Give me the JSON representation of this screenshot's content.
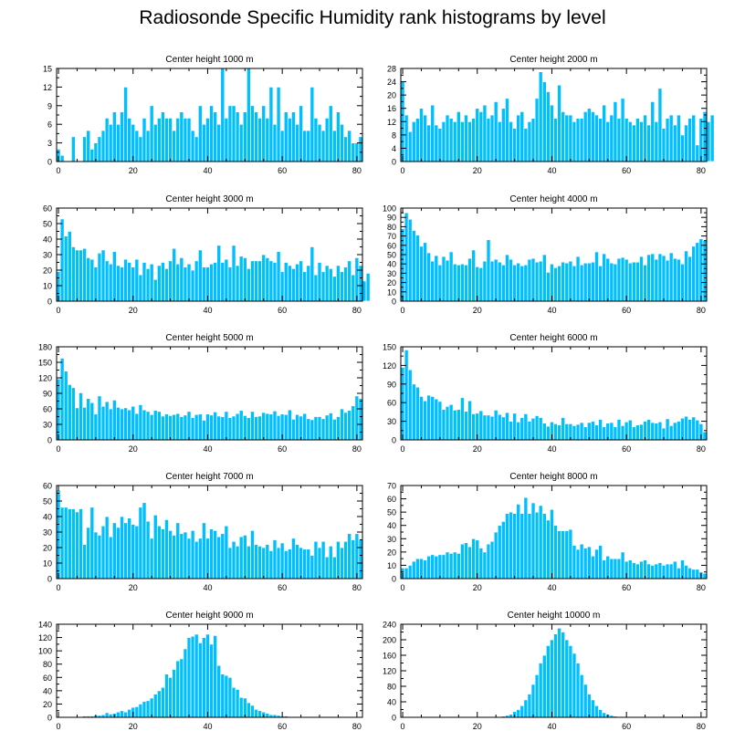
{
  "title": "Radiosonde Specific Humidity rank histograms by level",
  "colors": {
    "bar": "#00bfff",
    "bar_edge": "#ffffff",
    "axis": "#000000"
  },
  "chart_data": [
    {
      "type": "bar",
      "title": "Center height 1000 m",
      "ylim": [
        0,
        15
      ],
      "yticks": [
        0,
        3,
        6,
        9,
        12,
        15
      ],
      "xlim": [
        -0.5,
        81.5
      ],
      "xticks": [
        0,
        20,
        40,
        60,
        80
      ],
      "values": [
        2,
        1,
        0,
        0,
        4,
        0,
        0,
        4,
        5,
        2,
        3,
        4,
        5,
        7,
        6,
        8,
        6,
        8,
        12,
        7,
        6,
        5,
        4,
        7,
        5,
        9,
        6,
        7,
        8,
        7,
        7,
        5,
        7,
        8,
        7,
        7,
        5,
        4,
        9,
        6,
        7,
        9,
        8,
        6,
        15,
        7,
        9,
        9,
        8,
        6,
        8,
        15,
        9,
        8,
        7,
        9,
        7,
        12,
        6,
        12,
        5,
        8,
        7,
        8,
        6,
        9,
        5,
        5,
        12,
        7,
        6,
        5,
        7,
        9,
        5,
        8,
        6,
        4,
        5,
        3,
        3,
        4
      ]
    },
    {
      "type": "bar",
      "title": "Center height 2000 m",
      "ylim": [
        0,
        28
      ],
      "yticks": [
        0,
        4,
        8,
        12,
        16,
        20,
        24,
        28
      ],
      "xlim": [
        -0.5,
        81.5
      ],
      "xticks": [
        0,
        20,
        40,
        60,
        80
      ],
      "values": [
        24,
        14,
        9,
        12,
        13,
        16,
        14,
        11,
        17,
        11,
        10,
        12,
        14,
        13,
        12,
        15,
        12,
        14,
        12,
        13,
        16,
        15,
        17,
        13,
        14,
        18,
        12,
        16,
        19,
        12,
        10,
        14,
        15,
        10,
        12,
        13,
        19,
        27,
        24,
        21,
        17,
        13,
        23,
        15,
        14,
        14,
        12,
        13,
        13,
        15,
        16,
        15,
        14,
        13,
        17,
        12,
        14,
        18,
        13,
        19,
        13,
        12,
        11,
        13,
        12,
        14,
        11,
        18,
        12,
        22,
        10,
        13,
        14,
        11,
        14,
        8,
        11,
        13,
        14,
        5,
        13,
        15,
        12,
        14
      ]
    },
    {
      "type": "bar",
      "title": "Center height 3000 m",
      "ylim": [
        0,
        60
      ],
      "yticks": [
        0,
        10,
        20,
        30,
        40,
        50,
        60
      ],
      "xlim": [
        -0.5,
        81.5
      ],
      "xticks": [
        0,
        20,
        40,
        60,
        80
      ],
      "values": [
        19,
        53,
        42,
        45,
        35,
        33,
        33,
        34,
        28,
        27,
        22,
        31,
        33,
        26,
        24,
        32,
        23,
        22,
        27,
        25,
        22,
        27,
        17,
        25,
        21,
        24,
        14,
        23,
        25,
        21,
        26,
        34,
        24,
        28,
        22,
        24,
        20,
        26,
        33,
        22,
        22,
        24,
        25,
        36,
        25,
        27,
        22,
        36,
        23,
        29,
        28,
        21,
        26,
        26,
        26,
        30,
        28,
        26,
        25,
        32,
        19,
        25,
        23,
        21,
        24,
        26,
        19,
        23,
        35,
        17,
        25,
        19,
        23,
        21,
        16,
        23,
        19,
        22,
        26,
        17,
        28,
        23,
        13,
        18
      ]
    },
    {
      "type": "bar",
      "title": "Center height 4000 m",
      "ylim": [
        0,
        100
      ],
      "yticks": [
        0,
        10,
        20,
        30,
        40,
        50,
        60,
        70,
        80,
        90,
        100
      ],
      "xlim": [
        -0.5,
        81.5
      ],
      "xticks": [
        0,
        20,
        40,
        60,
        80
      ],
      "values": [
        78,
        95,
        88,
        76,
        71,
        59,
        63,
        52,
        43,
        49,
        39,
        48,
        44,
        53,
        40,
        39,
        40,
        39,
        46,
        55,
        37,
        36,
        43,
        66,
        43,
        45,
        42,
        39,
        50,
        45,
        39,
        41,
        38,
        39,
        45,
        46,
        42,
        43,
        50,
        31,
        40,
        36,
        38,
        42,
        41,
        43,
        38,
        48,
        39,
        41,
        41,
        42,
        53,
        38,
        51,
        46,
        41,
        40,
        46,
        47,
        45,
        41,
        42,
        42,
        48,
        39,
        50,
        51,
        45,
        51,
        49,
        44,
        52,
        46,
        45,
        40,
        54,
        48,
        59,
        63,
        67,
        65
      ]
    },
    {
      "type": "bar",
      "title": "Center height 5000 m",
      "ylim": [
        0,
        180
      ],
      "yticks": [
        0,
        30,
        60,
        90,
        120,
        150,
        180
      ],
      "xlim": [
        -0.5,
        81.5
      ],
      "xticks": [
        0,
        20,
        40,
        60,
        80
      ],
      "values": [
        118,
        158,
        133,
        107,
        101,
        62,
        91,
        63,
        80,
        72,
        50,
        85,
        65,
        74,
        60,
        77,
        63,
        60,
        62,
        58,
        65,
        51,
        68,
        58,
        55,
        49,
        57,
        55,
        46,
        50,
        47,
        49,
        51,
        45,
        48,
        55,
        43,
        49,
        50,
        38,
        50,
        48,
        54,
        46,
        45,
        55,
        43,
        46,
        51,
        57,
        47,
        43,
        55,
        45,
        46,
        53,
        51,
        50,
        56,
        47,
        50,
        49,
        58,
        40,
        49,
        46,
        51,
        41,
        39,
        45,
        45,
        41,
        48,
        52,
        40,
        45,
        60,
        53,
        57,
        66,
        85,
        80
      ]
    },
    {
      "type": "bar",
      "title": "Center height 6000 m",
      "ylim": [
        0,
        150
      ],
      "yticks": [
        0,
        30,
        60,
        90,
        120,
        150
      ],
      "xlim": [
        -0.5,
        81.5
      ],
      "xticks": [
        0,
        20,
        40,
        60,
        80
      ],
      "values": [
        117,
        145,
        113,
        90,
        85,
        70,
        63,
        72,
        70,
        66,
        62,
        49,
        54,
        57,
        48,
        49,
        68,
        46,
        63,
        42,
        43,
        47,
        40,
        40,
        38,
        48,
        41,
        37,
        44,
        30,
        43,
        29,
        36,
        42,
        30,
        35,
        39,
        36,
        27,
        22,
        29,
        26,
        24,
        36,
        26,
        26,
        23,
        25,
        28,
        21,
        28,
        30,
        24,
        33,
        21,
        27,
        28,
        21,
        33,
        23,
        29,
        32,
        21,
        24,
        25,
        30,
        33,
        28,
        27,
        29,
        19,
        34,
        23,
        28,
        30,
        35,
        38,
        33,
        37,
        32,
        26,
        13
      ]
    },
    {
      "type": "bar",
      "title": "Center height 7000 m",
      "ylim": [
        0,
        60
      ],
      "yticks": [
        0,
        10,
        20,
        30,
        40,
        50,
        60
      ],
      "xlim": [
        -0.5,
        81.5
      ],
      "xticks": [
        0,
        20,
        40,
        60,
        80
      ],
      "values": [
        57,
        46,
        46,
        45,
        45,
        43,
        45,
        22,
        33,
        46,
        30,
        28,
        34,
        40,
        27,
        36,
        33,
        40,
        36,
        39,
        35,
        34,
        46,
        49,
        37,
        26,
        41,
        34,
        32,
        38,
        31,
        28,
        36,
        29,
        30,
        26,
        31,
        24,
        26,
        36,
        26,
        32,
        31,
        27,
        29,
        34,
        20,
        24,
        21,
        27,
        28,
        21,
        31,
        22,
        21,
        20,
        22,
        18,
        25,
        20,
        23,
        18,
        19,
        26,
        22,
        20,
        19,
        19,
        15,
        24,
        20,
        24,
        14,
        21,
        14,
        24,
        20,
        24,
        29,
        25,
        29,
        25
      ]
    },
    {
      "type": "bar",
      "title": "Center height 8000 m",
      "ylim": [
        0,
        70
      ],
      "yticks": [
        0,
        10,
        20,
        30,
        40,
        50,
        60,
        70
      ],
      "xlim": [
        -0.5,
        81.5
      ],
      "xticks": [
        0,
        20,
        40,
        60,
        80
      ],
      "values": [
        8,
        8,
        10,
        13,
        15,
        15,
        14,
        17,
        18,
        17,
        18,
        18,
        20,
        19,
        20,
        19,
        26,
        27,
        24,
        30,
        29,
        23,
        20,
        26,
        28,
        35,
        40,
        43,
        49,
        50,
        49,
        56,
        49,
        61,
        49,
        57,
        50,
        55,
        49,
        44,
        52,
        40,
        36,
        36,
        36,
        37,
        25,
        22,
        26,
        23,
        24,
        17,
        22,
        25,
        14,
        17,
        15,
        15,
        15,
        20,
        13,
        14,
        12,
        11,
        13,
        14,
        11,
        10,
        11,
        12,
        10,
        11,
        11,
        13,
        8,
        14,
        10,
        8,
        7,
        7,
        5,
        4
      ]
    },
    {
      "type": "bar",
      "title": "Center height 9000 m",
      "ylim": [
        0,
        140
      ],
      "yticks": [
        0,
        20,
        40,
        60,
        80,
        100,
        120,
        140
      ],
      "xlim": [
        -0.5,
        81.5
      ],
      "xticks": [
        0,
        20,
        40,
        60,
        80
      ],
      "values": [
        0,
        0,
        0,
        0,
        0,
        0,
        1,
        2,
        2,
        2,
        3,
        3,
        4,
        7,
        5,
        6,
        8,
        10,
        8,
        12,
        15,
        16,
        20,
        24,
        25,
        29,
        35,
        40,
        45,
        65,
        60,
        72,
        85,
        88,
        103,
        120,
        122,
        125,
        112,
        120,
        125,
        110,
        123,
        78,
        65,
        63,
        60,
        45,
        42,
        30,
        29,
        22,
        18,
        12,
        10,
        8,
        6,
        4,
        4,
        3,
        2,
        2,
        1,
        1,
        1,
        1,
        1,
        0,
        0,
        0,
        0,
        0,
        1,
        0,
        0,
        0,
        1,
        0,
        0,
        0,
        0,
        0
      ]
    },
    {
      "type": "bar",
      "title": "Center height 10000 m",
      "ylim": [
        0,
        240
      ],
      "yticks": [
        0,
        40,
        80,
        120,
        160,
        200,
        240
      ],
      "xlim": [
        -0.5,
        81.5
      ],
      "xticks": [
        0,
        20,
        40,
        60,
        80
      ],
      "values": [
        0,
        0,
        0,
        0,
        0,
        0,
        0,
        0,
        0,
        0,
        0,
        0,
        0,
        0,
        0,
        0,
        0,
        0,
        0,
        0,
        0,
        0,
        0,
        0,
        1,
        1,
        2,
        3,
        5,
        8,
        15,
        20,
        30,
        45,
        60,
        85,
        110,
        140,
        160,
        185,
        200,
        215,
        230,
        220,
        200,
        185,
        165,
        140,
        110,
        85,
        60,
        45,
        30,
        20,
        12,
        8,
        5,
        3,
        2,
        1,
        1,
        1,
        0,
        0,
        0,
        0,
        0,
        0,
        0,
        0,
        0,
        0,
        0,
        0,
        0,
        0,
        0,
        0,
        0,
        0,
        0,
        0
      ]
    }
  ]
}
